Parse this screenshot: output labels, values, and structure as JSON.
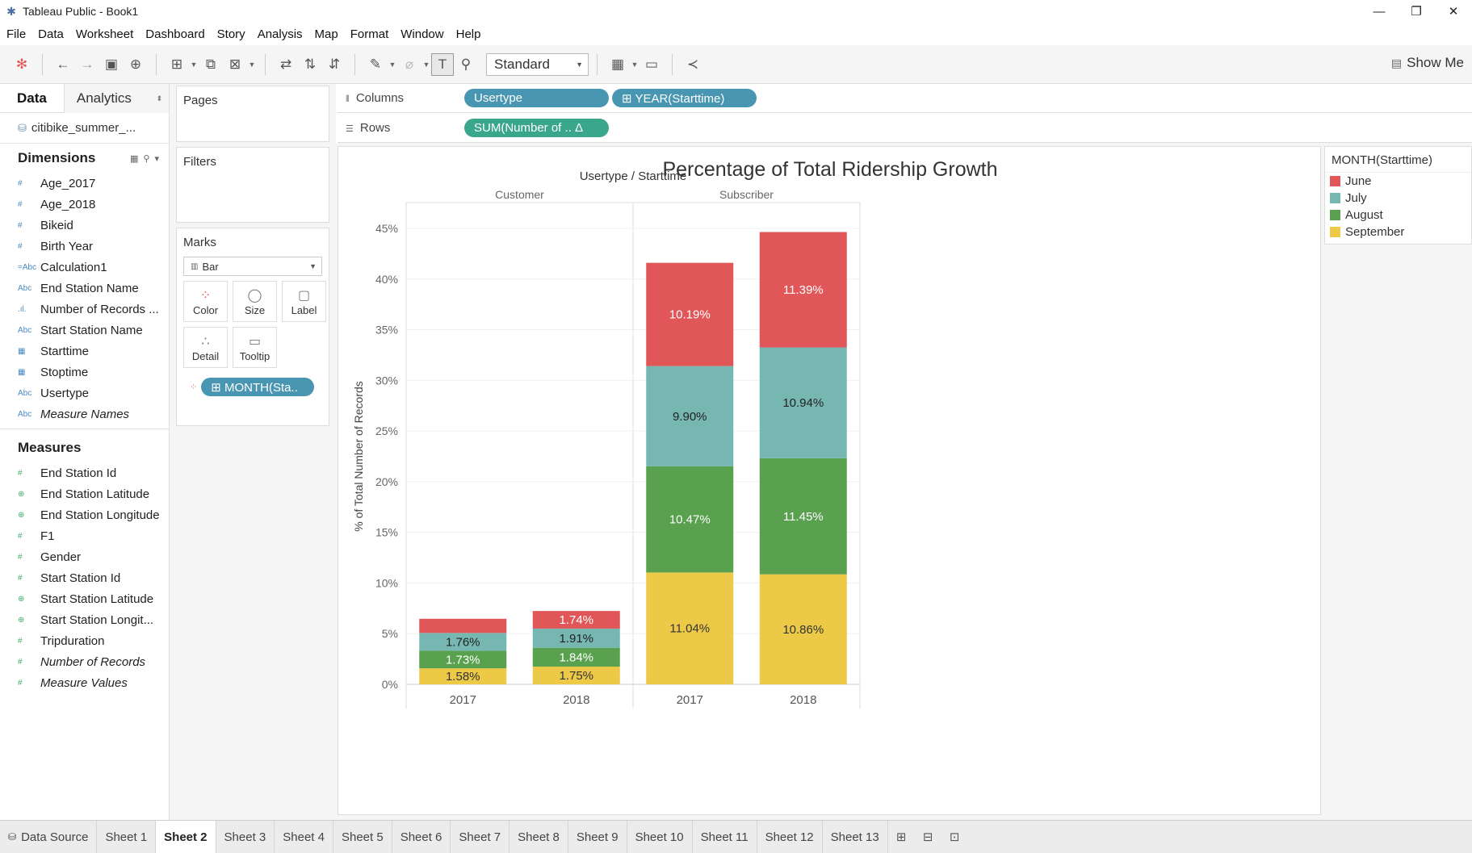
{
  "window": {
    "title": "Tableau Public - Book1",
    "controls": [
      "—",
      "❐",
      "✕"
    ]
  },
  "menu": [
    "File",
    "Data",
    "Worksheet",
    "Dashboard",
    "Story",
    "Analysis",
    "Map",
    "Format",
    "Window",
    "Help"
  ],
  "toolbar": {
    "fit_value": "Standard",
    "show_me_label": "Show Me"
  },
  "data_pane": {
    "tabs": [
      "Data",
      "Analytics"
    ],
    "datasource": "citibike_summer_...",
    "dimensions_label": "Dimensions",
    "dimensions": [
      {
        "icon": "#",
        "label": "Age_2017",
        "italic": false
      },
      {
        "icon": "#",
        "label": "Age_2018",
        "italic": false
      },
      {
        "icon": "#",
        "label": "Bikeid",
        "italic": false
      },
      {
        "icon": "#",
        "label": "Birth Year",
        "italic": false
      },
      {
        "icon": "=Abc",
        "label": "Calculation1",
        "italic": false
      },
      {
        "icon": "Abc",
        "label": "End Station Name",
        "italic": false
      },
      {
        "icon": ".ıl.",
        "label": "Number of Records ...",
        "italic": false
      },
      {
        "icon": "Abc",
        "label": "Start Station Name",
        "italic": false
      },
      {
        "icon": "▦",
        "label": "Starttime",
        "italic": false
      },
      {
        "icon": "▦",
        "label": "Stoptime",
        "italic": false
      },
      {
        "icon": "Abc",
        "label": "Usertype",
        "italic": false
      },
      {
        "icon": "Abc",
        "label": "Measure Names",
        "italic": true
      }
    ],
    "measures_label": "Measures",
    "measures": [
      {
        "icon": "#",
        "label": "End Station Id",
        "italic": false
      },
      {
        "icon": "⊕",
        "label": "End Station Latitude",
        "italic": false
      },
      {
        "icon": "⊕",
        "label": "End Station Longitude",
        "italic": false
      },
      {
        "icon": "#",
        "label": "F1",
        "italic": false
      },
      {
        "icon": "#",
        "label": "Gender",
        "italic": false
      },
      {
        "icon": "#",
        "label": "Start Station Id",
        "italic": false
      },
      {
        "icon": "⊕",
        "label": "Start Station Latitude",
        "italic": false
      },
      {
        "icon": "⊕",
        "label": "Start Station Longit...",
        "italic": false
      },
      {
        "icon": "#",
        "label": "Tripduration",
        "italic": false
      },
      {
        "icon": "#",
        "label": "Number of Records",
        "italic": true
      },
      {
        "icon": "#",
        "label": "Measure Values",
        "italic": true
      }
    ]
  },
  "cards": {
    "pages_label": "Pages",
    "filters_label": "Filters",
    "marks_label": "Marks",
    "mark_type": "Bar",
    "mark_buttons": [
      "Color",
      "Size",
      "Label",
      "Detail",
      "Tooltip"
    ],
    "color_pill": "⊞ MONTH(Sta.."
  },
  "shelves": {
    "columns_label": "Columns",
    "columns_pills": [
      "Usertype",
      "⊞ YEAR(Starttime)"
    ],
    "rows_label": "Rows",
    "rows_pill": "SUM(Number of ..  Δ"
  },
  "legend": {
    "title": "MONTH(Starttime)",
    "items": [
      {
        "label": "June",
        "color": "#e15759"
      },
      {
        "label": "July",
        "color": "#76b7b2"
      },
      {
        "label": "August",
        "color": "#59a14f"
      },
      {
        "label": "September",
        "color": "#edc948"
      }
    ]
  },
  "chart_data": {
    "type": "bar",
    "stacked": true,
    "title": "Percentage of Total Ridership Growth",
    "header_title": "Usertype / Starttime",
    "ylabel": "% of Total Number of Records",
    "ylim": [
      0,
      45
    ],
    "yticks": [
      "0%",
      "5%",
      "10%",
      "15%",
      "20%",
      "25%",
      "30%",
      "35%",
      "40%",
      "45%"
    ],
    "panes": [
      "Customer",
      "Subscriber"
    ],
    "categories": [
      {
        "pane": "Customer",
        "year": "2017"
      },
      {
        "pane": "Customer",
        "year": "2018"
      },
      {
        "pane": "Subscriber",
        "year": "2017"
      },
      {
        "pane": "Subscriber",
        "year": "2018"
      }
    ],
    "series": [
      {
        "name": "September",
        "color": "#edc948",
        "values": [
          1.58,
          1.75,
          11.04,
          10.86
        ],
        "labels": [
          "1.58%",
          "1.75%",
          "11.04%",
          "10.86%"
        ],
        "label_color": "#333333"
      },
      {
        "name": "August",
        "color": "#59a14f",
        "values": [
          1.73,
          1.84,
          10.47,
          11.45
        ],
        "labels": [
          "1.73%",
          "1.84%",
          "10.47%",
          "11.45%"
        ],
        "label_color": "#ffffff"
      },
      {
        "name": "July",
        "color": "#76b7b2",
        "values": [
          1.76,
          1.91,
          9.9,
          10.94
        ],
        "labels": [
          "1.76%",
          "1.91%",
          "9.90%",
          "10.94%"
        ],
        "label_color": "#222222"
      },
      {
        "name": "June",
        "color": "#e15759",
        "values": [
          1.4,
          1.74,
          10.19,
          11.39
        ],
        "labels": [
          "",
          "1.74%",
          "10.19%",
          "11.39%"
        ],
        "label_color": "#ffffff"
      }
    ]
  },
  "sheet_tabs": {
    "data_source": "Data Source",
    "sheets": [
      "Sheet 1",
      "Sheet 2",
      "Sheet 3",
      "Sheet 4",
      "Sheet 5",
      "Sheet 6",
      "Sheet 7",
      "Sheet 8",
      "Sheet 9",
      "Sheet 10",
      "Sheet 11",
      "Sheet 12",
      "Sheet 13"
    ],
    "active": "Sheet 2"
  }
}
